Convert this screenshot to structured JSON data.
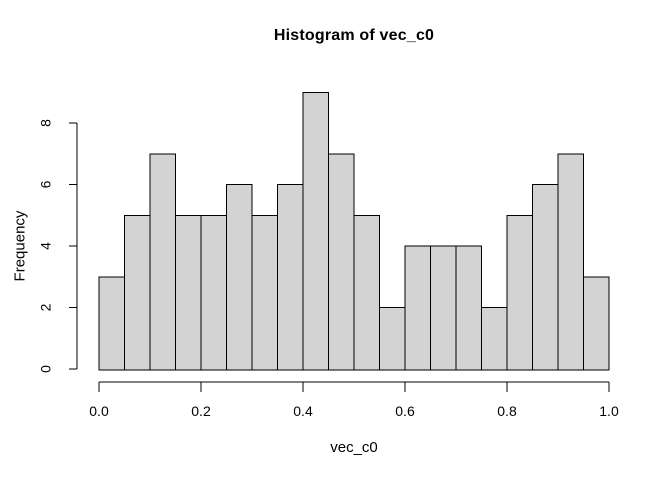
{
  "chart_data": {
    "type": "bar",
    "subtype": "histogram",
    "title": "Histogram of vec_c0",
    "xlabel": "vec_c0",
    "ylabel": "Frequency",
    "bin_start": 0.0,
    "bin_width": 0.05,
    "values": [
      3,
      5,
      7,
      5,
      5,
      6,
      5,
      6,
      9,
      7,
      5,
      2,
      4,
      4,
      4,
      2,
      5,
      6,
      7,
      3
    ],
    "xlim": [
      0.0,
      1.0
    ],
    "ylim": [
      0,
      9
    ],
    "x_ticks": {
      "values": [
        0.0,
        0.2,
        0.4,
        0.6,
        0.8,
        1.0
      ],
      "labels": [
        "0.0",
        "0.2",
        "0.4",
        "0.6",
        "0.8",
        "1.0"
      ]
    },
    "y_ticks": {
      "values": [
        0,
        2,
        4,
        6,
        8
      ],
      "labels": [
        "0",
        "2",
        "4",
        "6",
        "8"
      ]
    },
    "grid": false,
    "legend": "none"
  },
  "colors": {
    "bar_fill": "#D3D3D3",
    "bar_stroke": "#000000",
    "axis": "#000000",
    "text": "#000000",
    "background": "#FFFFFF"
  }
}
